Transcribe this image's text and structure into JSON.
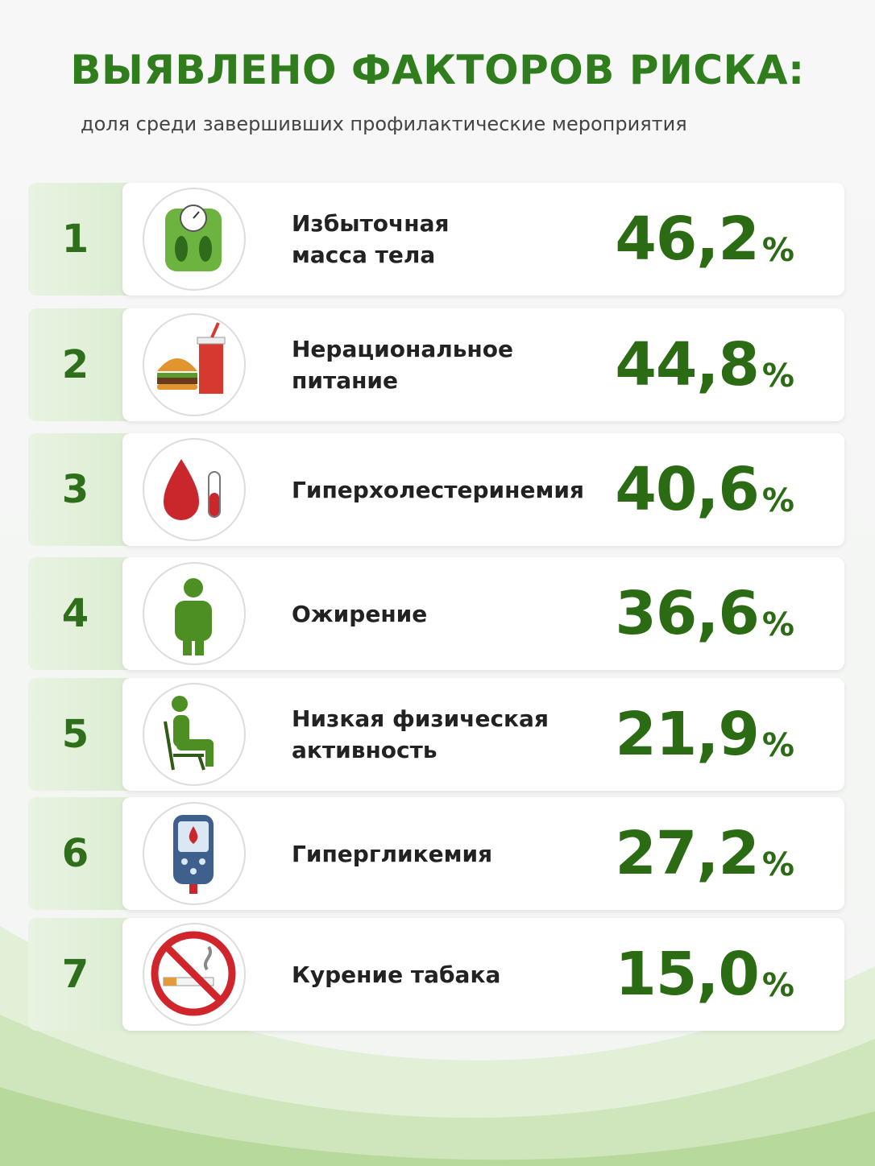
{
  "header": {
    "title": "ВЫЯВЛЕНО ФАКТОРОВ РИСКА:",
    "subtitle": "доля среди завершивших профилактические мероприятия"
  },
  "items": [
    {
      "rank": 1,
      "label_lines": [
        "Избыточная",
        "масса тела"
      ],
      "value": "46,2",
      "unit": "%"
    },
    {
      "rank": 2,
      "label_lines": [
        "Нерациональное",
        "питание"
      ],
      "value": "44,8",
      "unit": "%"
    },
    {
      "rank": 3,
      "label_lines": [
        "Гиперхолестеринемия"
      ],
      "value": "40,6",
      "unit": "%"
    },
    {
      "rank": 4,
      "label_lines": [
        "Ожирение"
      ],
      "value": "36,6",
      "unit": "%"
    },
    {
      "rank": 5,
      "label_lines": [
        "Низкая физическая",
        "активность"
      ],
      "value": "21,9",
      "unit": "%"
    },
    {
      "rank": 6,
      "label_lines": [
        "Гипергликемия"
      ],
      "value": "27,2",
      "unit": "%"
    },
    {
      "rank": 7,
      "label_lines": [
        "Курение табака"
      ],
      "value": "15,0",
      "unit": "%"
    }
  ]
}
